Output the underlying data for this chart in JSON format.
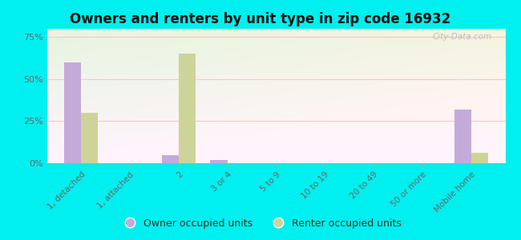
{
  "title": "Owners and renters by unit type in zip code 16932",
  "categories": [
    "1, detached",
    "1, attached",
    "2",
    "3 or 4",
    "5 to 9",
    "10 to 19",
    "20 to 49",
    "50 or more",
    "Mobile home"
  ],
  "owner_values": [
    60,
    0,
    5,
    2,
    0,
    0,
    0,
    0,
    32
  ],
  "renter_values": [
    30,
    0,
    65,
    0,
    0,
    0,
    0,
    0,
    6
  ],
  "owner_color": "#c4aad8",
  "renter_color": "#cdd49a",
  "ylim": [
    0,
    80
  ],
  "yticks": [
    0,
    25,
    50,
    75
  ],
  "ytick_labels": [
    "0%",
    "25%",
    "50%",
    "75%"
  ],
  "background_color": "#00efef",
  "grid_color": "#f5c8c8",
  "watermark": "City-Data.com",
  "legend_owner": "Owner occupied units",
  "legend_renter": "Renter occupied units",
  "bar_width": 0.35,
  "title_fontsize": 12
}
